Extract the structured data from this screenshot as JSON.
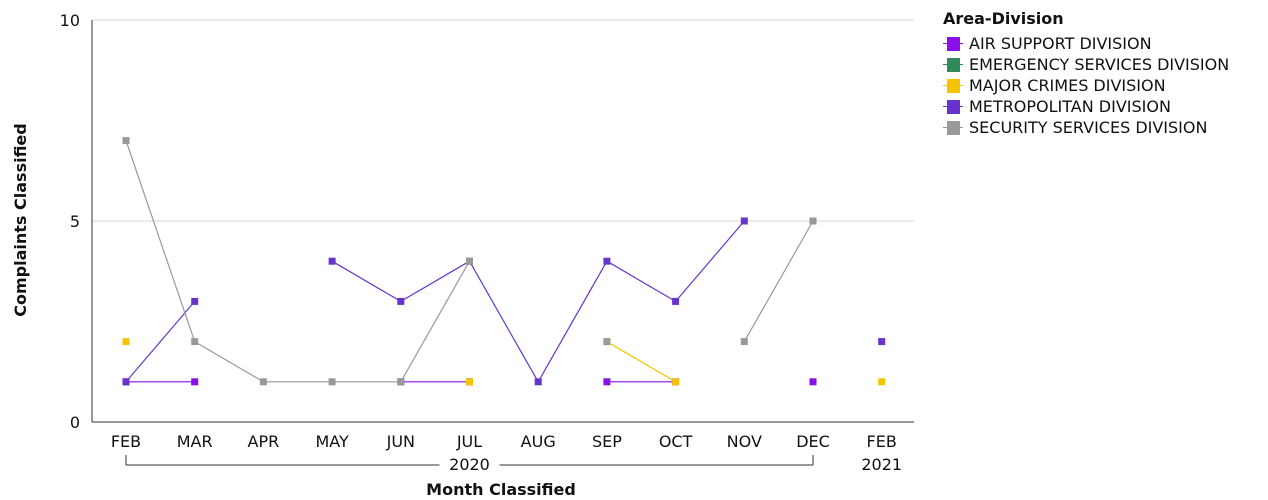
{
  "chart_data": {
    "type": "line",
    "xlabel": "Month Classified",
    "ylabel": "Complaints Classified",
    "ylim": [
      0,
      10
    ],
    "yticks": [
      "0",
      "5",
      "10"
    ],
    "categories": [
      "FEB",
      "MAR",
      "APR",
      "MAY",
      "JUN",
      "JUL",
      "AUG",
      "SEP",
      "OCT",
      "NOV",
      "DEC",
      "FEB"
    ],
    "year_groups": [
      {
        "label": "2020",
        "first": 0,
        "last": 10
      },
      {
        "label": "2021",
        "first": 11,
        "last": 11
      }
    ],
    "grid": "horizontal",
    "legend_title": "Area-Division",
    "legend_position": "top-right",
    "series": [
      {
        "name": "AIR SUPPORT DIVISION",
        "color": "#8a0fe8",
        "values": [
          1,
          1,
          null,
          null,
          1,
          1,
          null,
          1,
          1,
          null,
          1,
          null
        ]
      },
      {
        "name": "EMERGENCY SERVICES DIVISION",
        "color": "#2e8b57",
        "values": [
          null,
          null,
          null,
          null,
          null,
          null,
          null,
          null,
          null,
          null,
          null,
          null
        ]
      },
      {
        "name": "MAJOR CRIMES DIVISION",
        "color": "#f5c400",
        "values": [
          2,
          null,
          null,
          null,
          null,
          1,
          null,
          2,
          1,
          null,
          null,
          1
        ]
      },
      {
        "name": "METROPOLITAN DIVISION",
        "color": "#6633cc",
        "values": [
          1,
          3,
          null,
          4,
          3,
          4,
          1,
          4,
          3,
          5,
          null,
          2
        ]
      },
      {
        "name": "SECURITY SERVICES DIVISION",
        "color": "#999999",
        "values": [
          7,
          2,
          1,
          1,
          1,
          4,
          null,
          2,
          null,
          2,
          5,
          null
        ]
      }
    ]
  }
}
